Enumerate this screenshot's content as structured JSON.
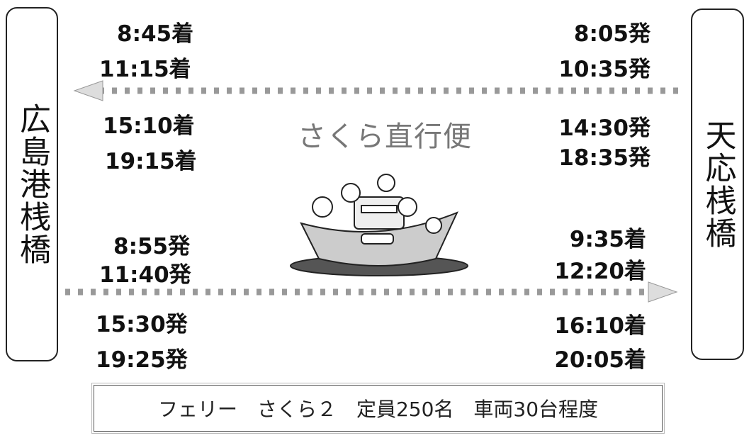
{
  "left_pier": "広島港桟橋",
  "right_pier": "天応桟橋",
  "service_name": "さくら直行便",
  "left_times": [
    "8:45着",
    "11:15着",
    "15:10着",
    "19:15着",
    "8:55発",
    "11:40発",
    "15:30発",
    "19:25発"
  ],
  "right_times": [
    "8:05発",
    "10:35発",
    "14:30発",
    "18:35発",
    "9:35着",
    "12:20着",
    "16:10着",
    "20:05着"
  ],
  "footer": "フェリー　さくら２　定員250名　車両30台程度"
}
